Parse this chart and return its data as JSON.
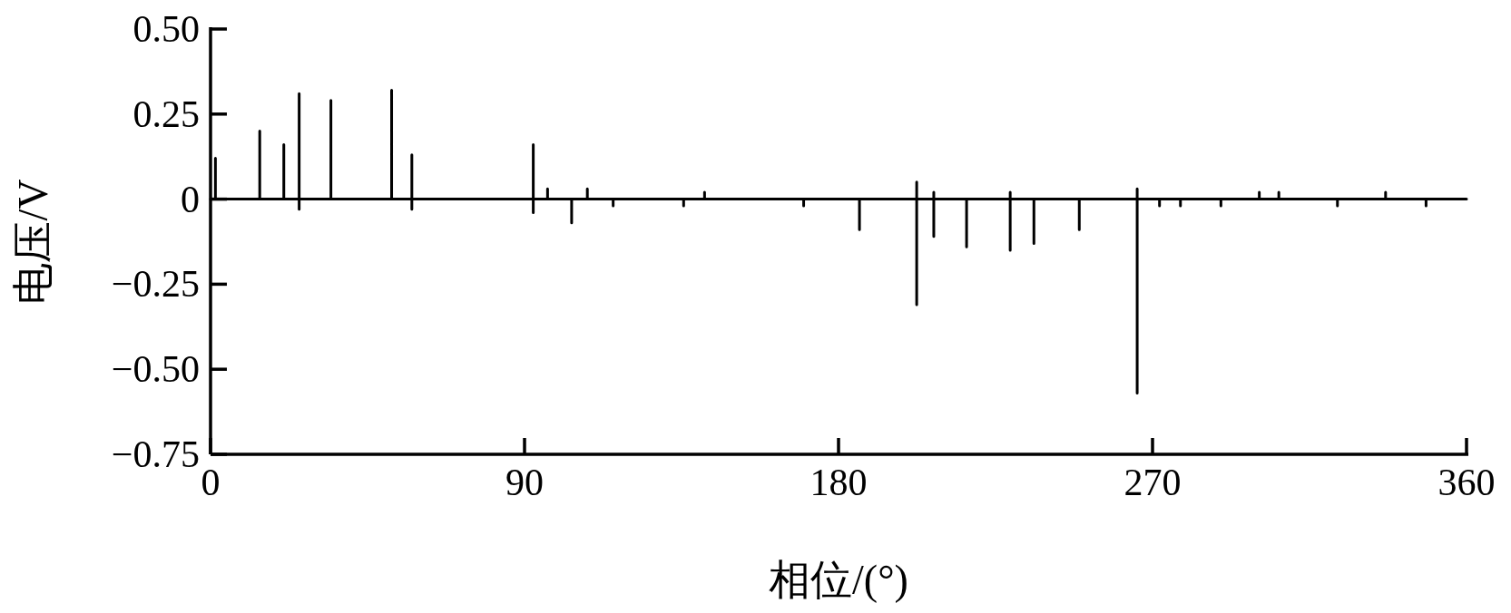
{
  "chart_data": {
    "type": "line",
    "xlabel": "相位/(°)",
    "ylabel": "电压/V",
    "xlim": [
      0,
      360
    ],
    "ylim": [
      -0.75,
      0.5
    ],
    "xticks": [
      0,
      90,
      180,
      270,
      360
    ],
    "yticks": [
      {
        "value": 0.5,
        "label": "0.50"
      },
      0.25,
      0,
      {
        "value": -0.25,
        "label": "−0.25"
      },
      {
        "value": -0.5,
        "label": "−0.50"
      },
      {
        "value": -0.75,
        "label": "−0.75"
      }
    ],
    "line_style": "solid",
    "marker": "none",
    "series": [
      {
        "color": "#000000",
        "x": [
          0,
          1.4,
          1.4,
          1.4,
          14.1,
          14.1,
          14.1,
          21,
          21,
          21,
          25.4,
          25.4,
          25.4,
          25.4,
          34.5,
          34.5,
          34.5,
          51.9,
          51.9,
          51.9,
          57.7,
          57.7,
          57.7,
          57.7,
          92.5,
          92.5,
          92.5,
          92.5,
          96.6,
          96.6,
          96.6,
          103.5,
          103.5,
          103.5,
          108,
          108,
          108,
          115.4,
          115.4,
          115.4,
          135.6,
          135.6,
          135.6,
          141.6,
          141.6,
          141.6,
          170,
          170,
          170,
          186,
          186,
          186,
          202.4,
          202.4,
          202.4,
          202.4,
          207.3,
          207.3,
          207.3,
          207.3,
          216.7,
          216.7,
          216.7,
          229.2,
          229.2,
          229.2,
          229.2,
          236,
          236,
          236,
          249,
          249,
          249,
          265.6,
          265.6,
          265.6,
          265.6,
          272,
          272,
          272,
          278,
          278,
          278,
          289.6,
          289.6,
          289.6,
          300.6,
          300.6,
          300.6,
          306.2,
          306.2,
          306.2,
          323,
          323,
          323,
          336.8,
          336.8,
          336.8,
          348.4,
          348.4,
          348.4,
          360
        ],
        "values": [
          0,
          0,
          0.12,
          0,
          0,
          0.2,
          0,
          0,
          0.16,
          0,
          0,
          0.31,
          -0.03,
          0,
          0,
          0.29,
          0,
          0,
          0.32,
          0,
          0,
          0.13,
          -0.03,
          0,
          0,
          0.16,
          -0.04,
          0,
          0,
          0.03,
          0,
          0,
          -0.07,
          0,
          0,
          0.03,
          0,
          0,
          -0.02,
          0,
          0,
          -0.02,
          0,
          0,
          0.02,
          0,
          0,
          -0.02,
          0,
          0,
          -0.09,
          0,
          0,
          0.05,
          -0.31,
          0,
          0,
          0.02,
          -0.11,
          0,
          0,
          -0.14,
          0,
          0,
          0.02,
          -0.15,
          0,
          0,
          -0.13,
          0,
          0,
          -0.09,
          0,
          0,
          0.03,
          -0.57,
          0,
          0,
          -0.02,
          0,
          0,
          -0.02,
          0,
          0,
          -0.02,
          0,
          0,
          0.02,
          0,
          0,
          0.02,
          0,
          0,
          -0.02,
          0,
          0,
          0.02,
          0,
          0,
          -0.02,
          0,
          0
        ]
      }
    ]
  }
}
